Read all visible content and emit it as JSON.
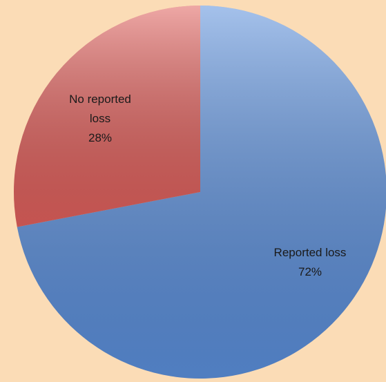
{
  "chart_data": {
    "type": "pie",
    "categories": [
      "Reported loss",
      "No reported loss"
    ],
    "values": [
      72,
      28
    ],
    "value_labels": [
      "72%",
      "28%"
    ],
    "colors": [
      "#5b8fdb",
      "#e0605c"
    ],
    "start_angle": "top",
    "direction": "clockwise"
  }
}
